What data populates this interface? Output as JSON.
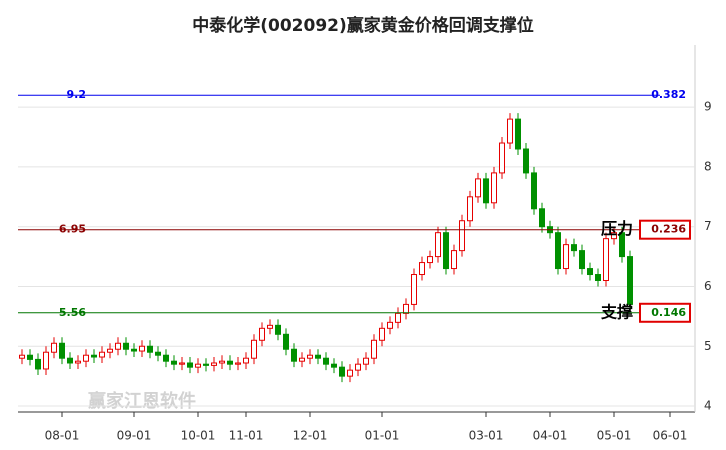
{
  "chart_data": {
    "type": "candlestick",
    "title": "中泰化学(002092)赢家黄金价格回调支撑位",
    "watermark": "赢家江恩软件",
    "categories": [
      null,
      null,
      null,
      null,
      null,
      "08-01",
      null,
      null,
      null,
      null,
      null,
      null,
      null,
      null,
      "09-01",
      null,
      null,
      null,
      null,
      null,
      null,
      null,
      "10-01",
      null,
      null,
      null,
      null,
      null,
      "11-01",
      null,
      null,
      null,
      null,
      null,
      null,
      null,
      "12-01",
      null,
      null,
      null,
      null,
      null,
      null,
      null,
      null,
      "01-01",
      null,
      null,
      null,
      null,
      null,
      null,
      null,
      null,
      null,
      null,
      null,
      null,
      "03-01",
      null,
      null,
      null,
      null,
      null,
      null,
      null,
      "04-01",
      null,
      null,
      null,
      null,
      null,
      null,
      null,
      "05-01",
      null,
      null,
      null,
      null,
      null,
      null,
      "06-01",
      null,
      null
    ],
    "open": [
      4.8,
      4.85,
      4.78,
      4.62,
      4.9,
      5.05,
      4.8,
      4.72,
      4.75,
      4.85,
      4.82,
      4.9,
      4.95,
      5.05,
      4.95,
      4.92,
      5.0,
      4.9,
      4.85,
      4.75,
      4.7,
      4.72,
      4.65,
      4.7,
      4.68,
      4.72,
      4.75,
      4.7,
      4.72,
      4.8,
      5.1,
      5.3,
      5.35,
      5.2,
      4.95,
      4.75,
      4.8,
      4.85,
      4.8,
      4.7,
      4.65,
      4.5,
      4.6,
      4.7,
      4.8,
      5.1,
      5.3,
      5.4,
      5.55,
      5.7,
      6.2,
      6.4,
      6.5,
      6.9,
      6.3,
      6.6,
      7.1,
      7.5,
      7.8,
      7.4,
      7.9,
      8.4,
      8.8,
      8.3,
      7.9,
      7.3,
      7.0,
      6.9,
      6.3,
      6.7,
      6.6,
      6.3,
      6.2,
      6.1,
      6.8,
      6.9,
      6.5,
      null,
      null,
      null,
      null,
      null,
      null,
      null
    ],
    "high": [
      4.95,
      4.95,
      4.88,
      5.0,
      5.15,
      5.15,
      4.9,
      4.85,
      4.95,
      4.95,
      5.0,
      5.05,
      5.15,
      5.15,
      5.05,
      5.1,
      5.1,
      5.0,
      4.95,
      4.85,
      4.82,
      4.82,
      4.8,
      4.8,
      4.82,
      4.85,
      4.85,
      4.82,
      4.9,
      5.2,
      5.4,
      5.45,
      5.45,
      5.3,
      5.05,
      4.9,
      4.95,
      4.95,
      4.9,
      4.8,
      4.75,
      4.7,
      4.8,
      4.9,
      5.2,
      5.4,
      5.5,
      5.65,
      5.8,
      6.3,
      6.5,
      6.6,
      7.0,
      7.0,
      6.7,
      7.2,
      7.6,
      7.9,
      7.9,
      8.0,
      8.5,
      8.9,
      8.9,
      8.4,
      8.0,
      7.4,
      7.1,
      7.0,
      6.8,
      6.8,
      6.7,
      6.4,
      6.3,
      6.9,
      7.0,
      7.0,
      6.6,
      null,
      null,
      null,
      null,
      null,
      null,
      null
    ],
    "low": [
      4.7,
      4.68,
      4.52,
      4.52,
      4.8,
      4.7,
      4.62,
      4.62,
      4.65,
      4.72,
      4.72,
      4.8,
      4.85,
      4.85,
      4.82,
      4.82,
      4.8,
      4.75,
      4.65,
      4.6,
      4.6,
      4.55,
      4.55,
      4.58,
      4.58,
      4.62,
      4.6,
      4.6,
      4.62,
      4.7,
      5.0,
      5.2,
      5.1,
      4.85,
      4.65,
      4.65,
      4.7,
      4.7,
      4.6,
      4.55,
      4.4,
      4.4,
      4.5,
      4.6,
      4.7,
      5.0,
      5.2,
      5.3,
      5.45,
      5.6,
      6.1,
      6.3,
      6.4,
      6.2,
      6.2,
      6.5,
      7.0,
      7.4,
      7.3,
      7.3,
      7.8,
      8.3,
      8.2,
      7.8,
      7.2,
      6.9,
      6.8,
      6.2,
      6.2,
      6.5,
      6.2,
      6.1,
      6.0,
      6.0,
      6.7,
      6.4,
      5.6,
      null,
      null,
      null,
      null,
      null,
      null,
      null
    ],
    "close": [
      4.85,
      4.78,
      4.62,
      4.9,
      5.05,
      4.8,
      4.72,
      4.75,
      4.85,
      4.82,
      4.9,
      4.95,
      5.05,
      4.95,
      4.92,
      5.0,
      4.9,
      4.85,
      4.75,
      4.7,
      4.72,
      4.65,
      4.7,
      4.68,
      4.72,
      4.75,
      4.7,
      4.72,
      4.8,
      5.1,
      5.3,
      5.35,
      5.2,
      4.95,
      4.75,
      4.8,
      4.85,
      4.8,
      4.7,
      4.65,
      4.5,
      4.6,
      4.7,
      4.8,
      5.1,
      5.3,
      5.4,
      5.55,
      5.7,
      6.2,
      6.4,
      6.5,
      6.9,
      6.3,
      6.6,
      7.1,
      7.5,
      7.8,
      7.4,
      7.9,
      8.4,
      8.8,
      8.3,
      7.9,
      7.3,
      7.0,
      6.9,
      6.3,
      6.7,
      6.6,
      6.3,
      6.2,
      6.1,
      6.8,
      6.9,
      6.5,
      5.7,
      null,
      null,
      null,
      null,
      null,
      null,
      null
    ],
    "up_color": "#e60000",
    "down_color": "#009000",
    "ylim": [
      3.9,
      10.04
    ],
    "yticks": [
      4,
      5,
      6,
      7,
      8,
      9
    ],
    "grid": true,
    "levels": [
      {
        "price": 9.2,
        "ratio": 0.382,
        "color": "#0000ee"
      },
      {
        "price": 6.95,
        "ratio": 0.236,
        "color": "#8b0000",
        "note": "压力",
        "box_color": "#e00000"
      },
      {
        "price": 5.56,
        "ratio": 0.146,
        "color": "#007700",
        "note": "支撑",
        "box_color": "#e00000"
      }
    ]
  }
}
